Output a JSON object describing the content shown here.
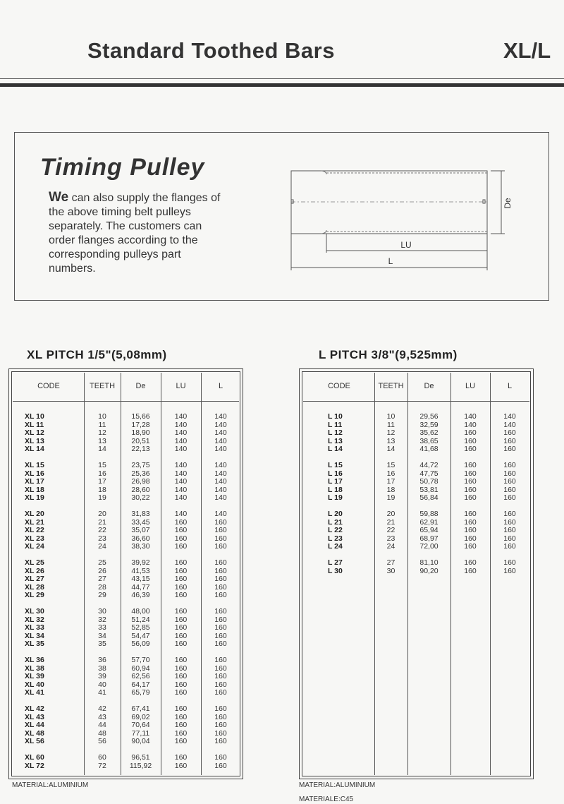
{
  "header": {
    "title": "Standard Toothed Bars",
    "right_title": "XL/L"
  },
  "info": {
    "title": "Timing Pulley",
    "lead_word": "We",
    "text": " can also supply the flanges of the above timing belt pulleys separately. The customers can order flanges according to the corresponding pulleys part numbers.",
    "diagram_labels": {
      "de": "De",
      "lu": "LU",
      "l": "L"
    }
  },
  "columns": [
    "CODE",
    "TEETH",
    "De",
    "LU",
    "L"
  ],
  "xl": {
    "title": "XL PITCH 1/5\"(5,08mm)",
    "material": "MATERIAL:ALUMINIUM",
    "groups": [
      [
        [
          "XL 10",
          "10",
          "15,66",
          "140",
          "140"
        ],
        [
          "XL 11",
          "11",
          "17,28",
          "140",
          "140"
        ],
        [
          "XL 12",
          "12",
          "18,90",
          "140",
          "140"
        ],
        [
          "XL 13",
          "13",
          "20,51",
          "140",
          "140"
        ],
        [
          "XL 14",
          "14",
          "22,13",
          "140",
          "140"
        ]
      ],
      [
        [
          "XL 15",
          "15",
          "23,75",
          "140",
          "140"
        ],
        [
          "XL 16",
          "16",
          "25,36",
          "140",
          "140"
        ],
        [
          "XL 17",
          "17",
          "26,98",
          "140",
          "140"
        ],
        [
          "XL 18",
          "18",
          "28,60",
          "140",
          "140"
        ],
        [
          "XL 19",
          "19",
          "30,22",
          "140",
          "140"
        ]
      ],
      [
        [
          "XL 20",
          "20",
          "31,83",
          "140",
          "140"
        ],
        [
          "XL 21",
          "21",
          "33,45",
          "160",
          "160"
        ],
        [
          "XL 22",
          "22",
          "35,07",
          "160",
          "160"
        ],
        [
          "XL 23",
          "23",
          "36,60",
          "160",
          "160"
        ],
        [
          "XL 24",
          "24",
          "38,30",
          "160",
          "160"
        ]
      ],
      [
        [
          "XL 25",
          "25",
          "39,92",
          "160",
          "160"
        ],
        [
          "XL 26",
          "26",
          "41,53",
          "160",
          "160"
        ],
        [
          "XL 27",
          "27",
          "43,15",
          "160",
          "160"
        ],
        [
          "XL 28",
          "28",
          "44,77",
          "160",
          "160"
        ],
        [
          "XL 29",
          "29",
          "46,39",
          "160",
          "160"
        ]
      ],
      [
        [
          "XL 30",
          "30",
          "48,00",
          "160",
          "160"
        ],
        [
          "XL 32",
          "32",
          "51,24",
          "160",
          "160"
        ],
        [
          "XL 33",
          "33",
          "52,85",
          "160",
          "160"
        ],
        [
          "XL 34",
          "34",
          "54,47",
          "160",
          "160"
        ],
        [
          "XL 35",
          "35",
          "56,09",
          "160",
          "160"
        ]
      ],
      [
        [
          "XL 36",
          "36",
          "57,70",
          "160",
          "160"
        ],
        [
          "XL 38",
          "38",
          "60,94",
          "160",
          "160"
        ],
        [
          "XL 39",
          "39",
          "62,56",
          "160",
          "160"
        ],
        [
          "XL 40",
          "40",
          "64,17",
          "160",
          "160"
        ],
        [
          "XL 41",
          "41",
          "65,79",
          "160",
          "160"
        ]
      ],
      [
        [
          "XL 42",
          "42",
          "67,41",
          "160",
          "160"
        ],
        [
          "XL 43",
          "43",
          "69,02",
          "160",
          "160"
        ],
        [
          "XL 44",
          "44",
          "70,64",
          "160",
          "160"
        ],
        [
          "XL 48",
          "48",
          "77,11",
          "160",
          "160"
        ],
        [
          "XL 56",
          "56",
          "90,04",
          "160",
          "160"
        ]
      ],
      [
        [
          "XL 60",
          "60",
          "96,51",
          "160",
          "160"
        ],
        [
          "XL 72",
          "72",
          "115,92",
          "160",
          "160"
        ]
      ]
    ]
  },
  "l": {
    "title": "L PITCH 3/8\"(9,525mm)",
    "material": "MATERIAL:ALUMINIUM",
    "material2": "MATERIALE:C45",
    "groups": [
      [
        [
          "L 10",
          "10",
          "29,56",
          "140",
          "140"
        ],
        [
          "L 11",
          "11",
          "32,59",
          "140",
          "140"
        ],
        [
          "L 12",
          "12",
          "35,62",
          "160",
          "160"
        ],
        [
          "L 13",
          "13",
          "38,65",
          "160",
          "160"
        ],
        [
          "L 14",
          "14",
          "41,68",
          "160",
          "160"
        ]
      ],
      [
        [
          "L 15",
          "15",
          "44,72",
          "160",
          "160"
        ],
        [
          "L 16",
          "16",
          "47,75",
          "160",
          "160"
        ],
        [
          "L 17",
          "17",
          "50,78",
          "160",
          "160"
        ],
        [
          "L 18",
          "18",
          "53,81",
          "160",
          "160"
        ],
        [
          "L 19",
          "19",
          "56,84",
          "160",
          "160"
        ]
      ],
      [
        [
          "L 20",
          "20",
          "59,88",
          "160",
          "160"
        ],
        [
          "L 21",
          "21",
          "62,91",
          "160",
          "160"
        ],
        [
          "L 22",
          "22",
          "65,94",
          "160",
          "160"
        ],
        [
          "L 23",
          "23",
          "68,97",
          "160",
          "160"
        ],
        [
          "L 24",
          "24",
          "72,00",
          "160",
          "160"
        ]
      ],
      [
        [
          "L 27",
          "27",
          "81,10",
          "160",
          "160"
        ],
        [
          "L 30",
          "30",
          "90,20",
          "160",
          "160"
        ]
      ]
    ]
  }
}
